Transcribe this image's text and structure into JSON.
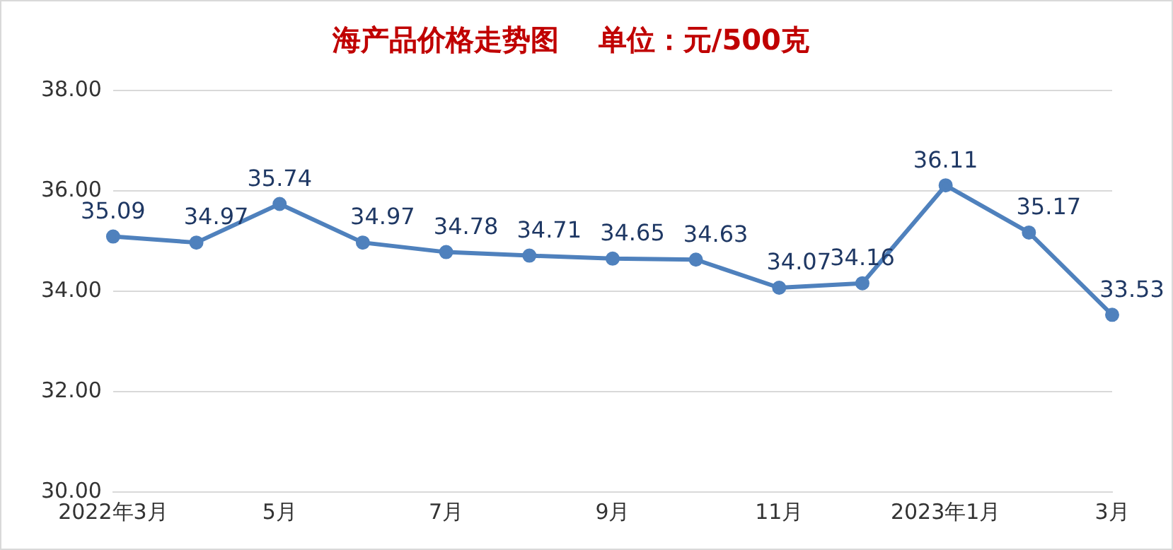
{
  "chart_data": {
    "type": "line",
    "title": "海产品价格走势图    单位：元/500克",
    "categories": [
      "2022年3月",
      null,
      "5月",
      null,
      "7月",
      null,
      "9月",
      null,
      "11月",
      null,
      "2023年1月",
      null,
      "3月"
    ],
    "series": [
      {
        "color": "#4f81bd",
        "values": [
          35.09,
          34.97,
          35.74,
          34.97,
          34.78,
          34.71,
          34.65,
          34.63,
          34.07,
          34.16,
          36.11,
          35.17,
          33.53
        ]
      }
    ],
    "ylim": [
      30,
      38
    ],
    "yticks": [
      {
        "value": 30,
        "label": "30.00"
      },
      {
        "value": 32,
        "label": "32.00"
      },
      {
        "value": 34,
        "label": "34.00"
      },
      {
        "value": 36,
        "label": "36.00"
      },
      {
        "value": 38,
        "label": "38.00"
      }
    ],
    "grid": "y",
    "legend": false,
    "marker": "circle",
    "line_style": "solid",
    "data_labels": true
  }
}
